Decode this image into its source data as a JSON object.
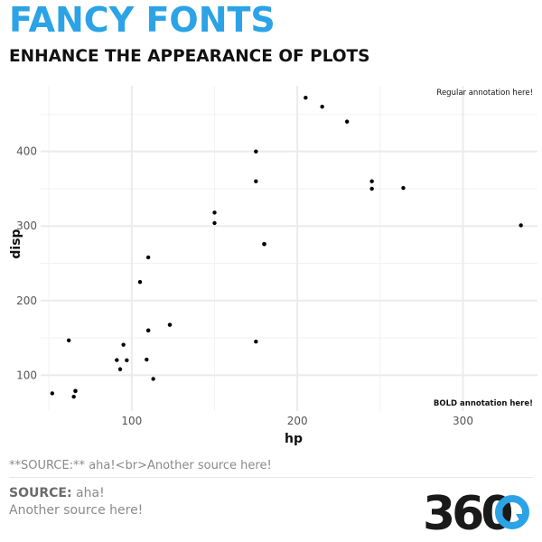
{
  "header": {
    "title": "FANCY FONTS",
    "subtitle": "ENHANCE THE APPEARANCE OF PLOTS"
  },
  "caption": {
    "raw": "**SOURCE:** aha!<br>Another source here!",
    "source_label": "SOURCE:",
    "source_value": "aha!",
    "source_line2": "Another source here!"
  },
  "logo": {
    "text": "360"
  },
  "colors": {
    "title": "#2ba3e6",
    "points": "#000000",
    "grid": "#ebebeb",
    "logo_dark": "#1a1a1a",
    "logo_accent": "#2ba3e6"
  },
  "chart_data": {
    "type": "scatter",
    "xlabel": "hp",
    "ylabel": "disp",
    "xlim": [
      45,
      345
    ],
    "ylim": [
      52,
      488
    ],
    "x_ticks": [
      100,
      200,
      300
    ],
    "y_ticks": [
      100,
      200,
      300,
      400
    ],
    "grid": true,
    "points": [
      [
        52,
        75.7
      ],
      [
        62,
        146.7
      ],
      [
        65,
        71.1
      ],
      [
        66,
        78.7
      ],
      [
        66,
        79
      ],
      [
        91,
        120.3
      ],
      [
        93,
        108
      ],
      [
        95,
        140.8
      ],
      [
        97,
        120.1
      ],
      [
        105,
        225
      ],
      [
        109,
        121
      ],
      [
        110,
        160
      ],
      [
        110,
        160
      ],
      [
        110,
        258
      ],
      [
        113,
        95.1
      ],
      [
        123,
        167.6
      ],
      [
        123,
        167.6
      ],
      [
        150,
        318
      ],
      [
        150,
        304
      ],
      [
        175,
        360
      ],
      [
        175,
        145
      ],
      [
        175,
        400
      ],
      [
        180,
        275.8
      ],
      [
        180,
        275.8
      ],
      [
        180,
        275.8
      ],
      [
        205,
        472
      ],
      [
        215,
        460
      ],
      [
        230,
        440
      ],
      [
        245,
        360
      ],
      [
        245,
        350
      ],
      [
        264,
        351
      ],
      [
        335,
        301
      ]
    ],
    "annotations": [
      {
        "text": "Regular annotation here!",
        "position": "top-right",
        "bold": false
      },
      {
        "text": "BOLD annotation here!",
        "position": "bottom-right",
        "bold": true
      }
    ]
  }
}
